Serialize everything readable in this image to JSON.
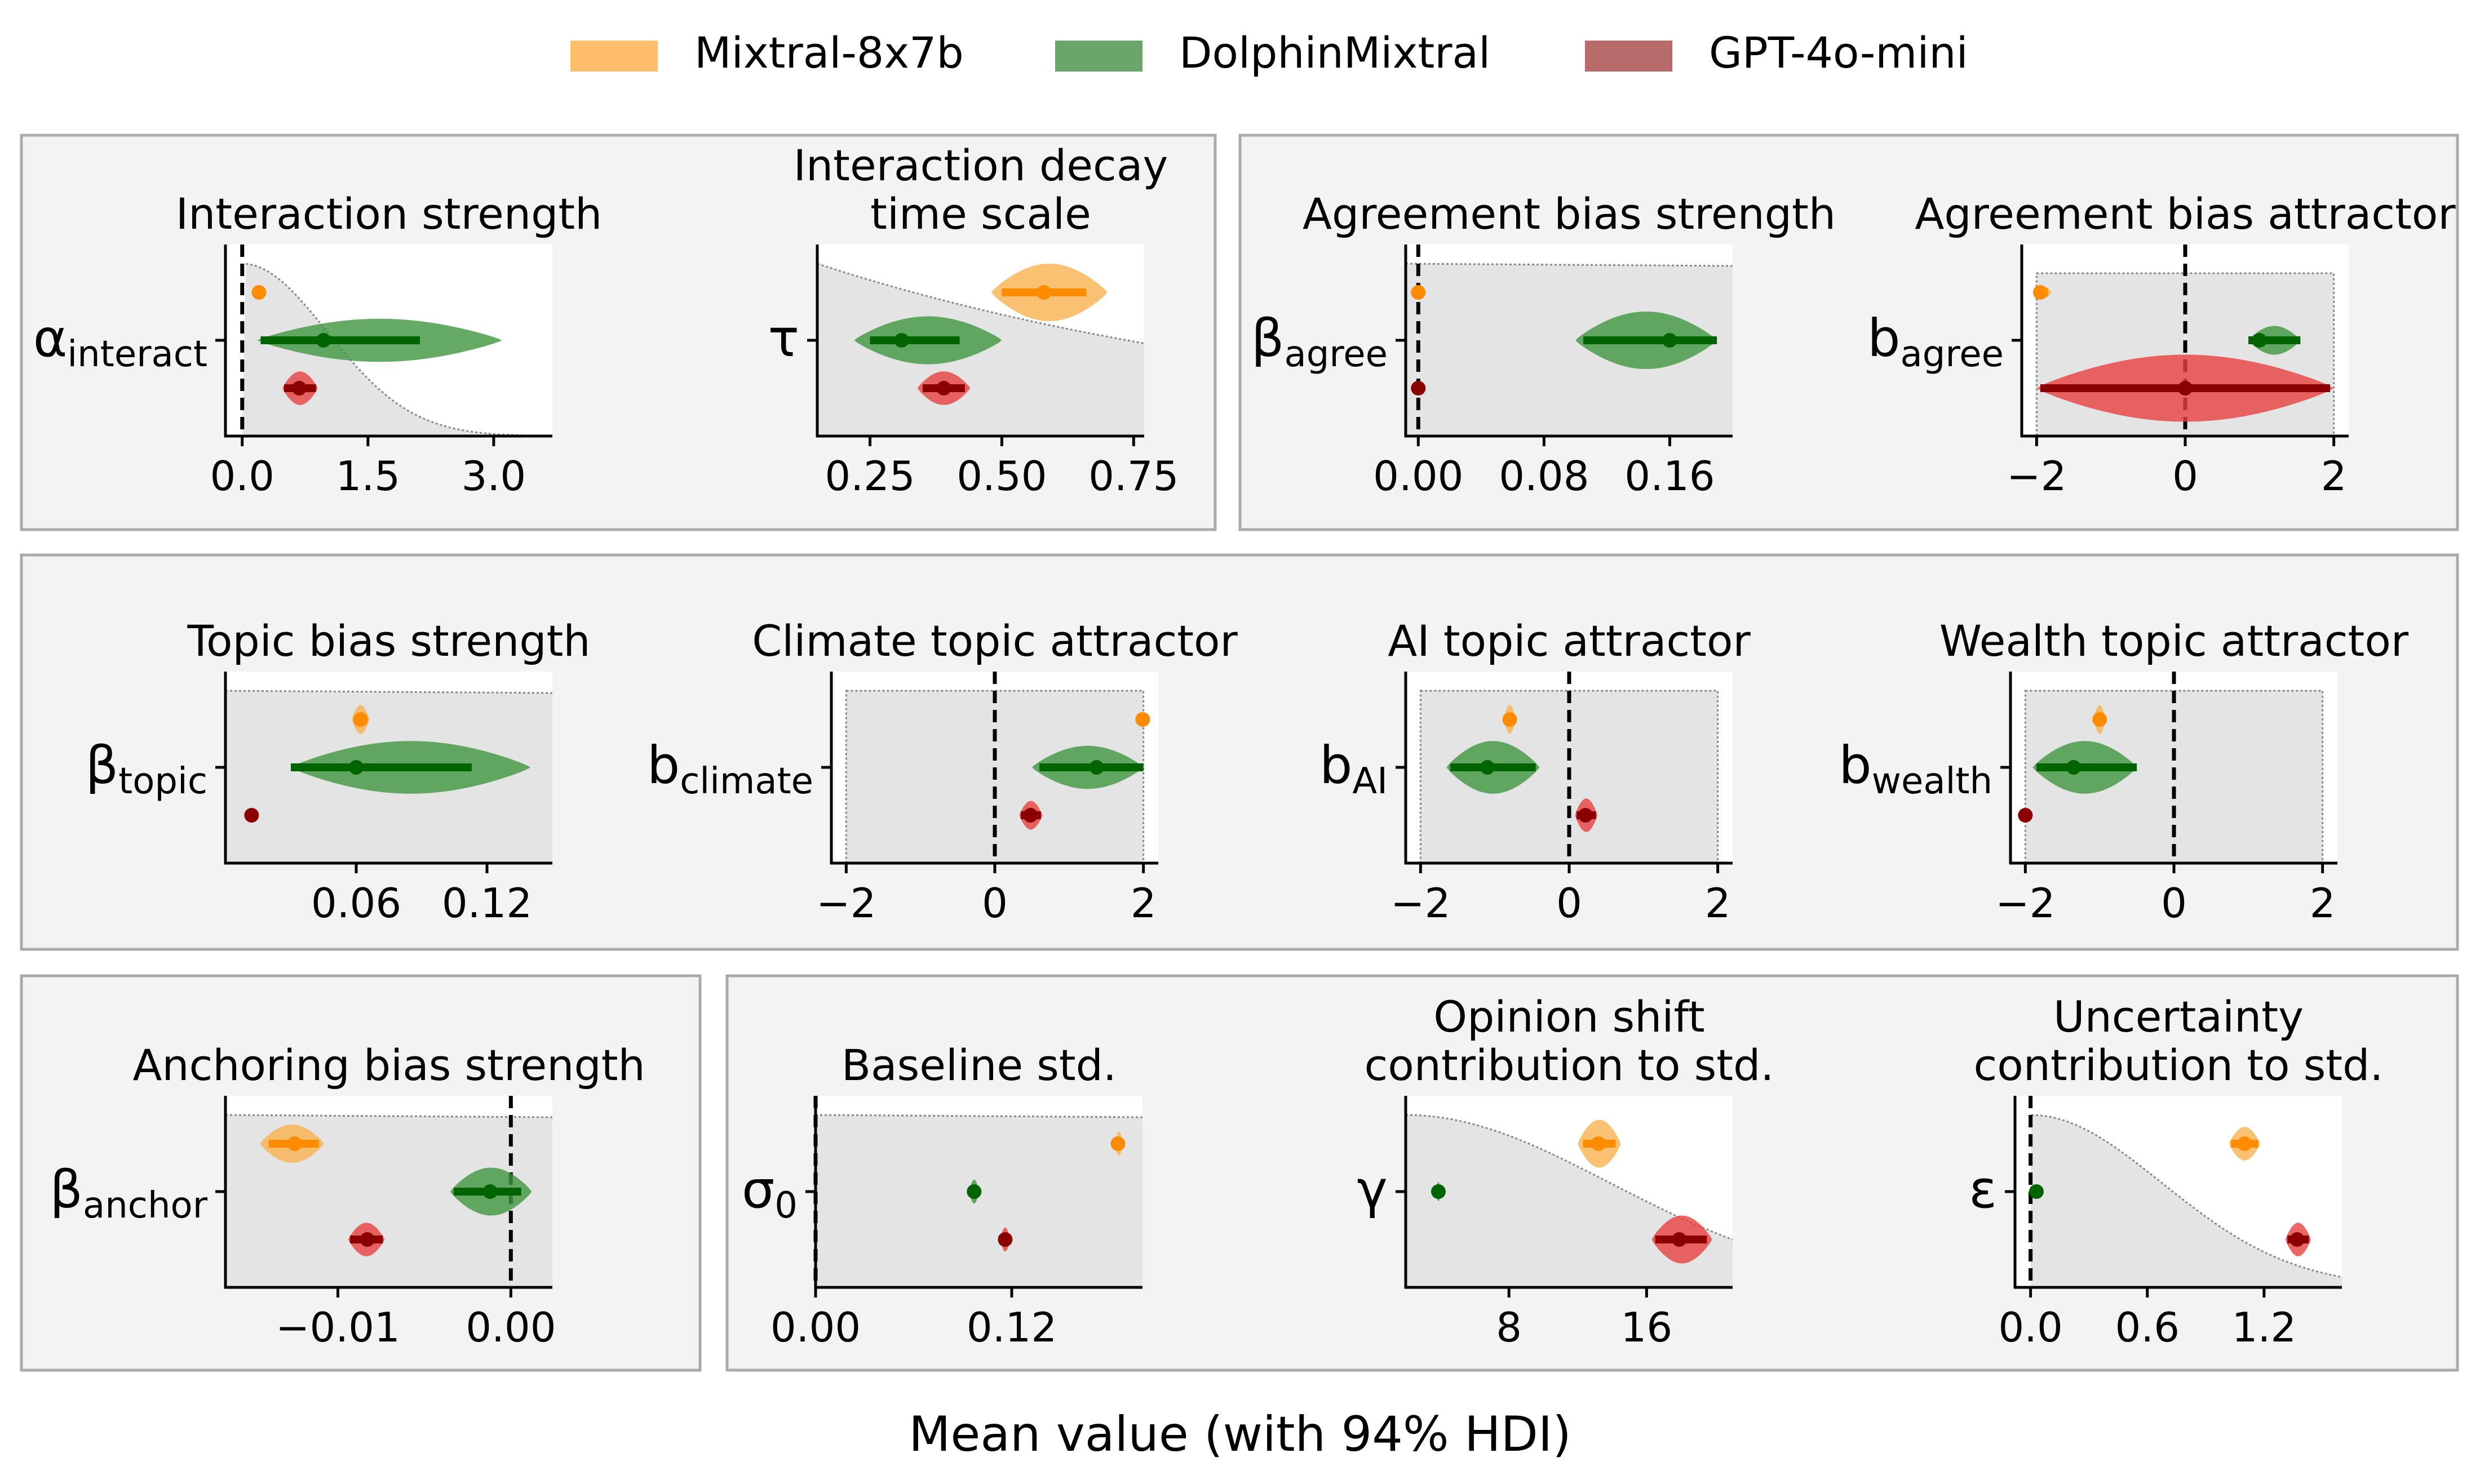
{
  "legend": [
    {
      "label": "Mixtral-8x7b",
      "color": "#ffbe6b"
    },
    {
      "label": "DolphinMixtral",
      "color": "#6aa66a"
    },
    {
      "label": "GPT-4o-mini",
      "color": "#b76b6b"
    }
  ],
  "colors": {
    "Mixtral-8x7b": {
      "fill": "#f9b24f",
      "line": "#ff8c00"
    },
    "DolphinMixtral": {
      "fill": "#3e963e",
      "line": "#006400"
    },
    "GPT-4o-mini": {
      "fill": "#e84040",
      "line": "#8b0000"
    },
    "prior": "#e4e4e4",
    "panel_bg": "#f3f3f3"
  },
  "xlabel": "Mean value (with 94% HDI)",
  "chart_data": [
    {
      "type": "violin",
      "title": [
        "Interaction strength"
      ],
      "ylabel": {
        "base": "α",
        "sub": "interact"
      },
      "xlim": [
        -0.2,
        3.7
      ],
      "ticks": [
        {
          "v": 0,
          "l": "0.0"
        },
        {
          "v": 1.5,
          "l": "1.5"
        },
        {
          "v": 3.0,
          "l": "3.0"
        }
      ],
      "zero_line": true,
      "prior": {
        "shape": "halfnormal",
        "scale": 1.5,
        "top": 0.9
      },
      "series": [
        {
          "name": "Mixtral-8x7b",
          "mean": 0.2,
          "hdi": [
            0.16,
            0.24
          ],
          "violin": [
            0.14,
            0.26
          ],
          "hw": 0.15
        },
        {
          "name": "DolphinMixtral",
          "mean": 0.97,
          "hdi": [
            0.22,
            2.12
          ],
          "violin": [
            0.18,
            3.1
          ],
          "hw": 0.45
        },
        {
          "name": "GPT-4o-mini",
          "mean": 0.68,
          "hdi": [
            0.5,
            0.88
          ],
          "violin": [
            0.48,
            0.9
          ],
          "hw": 0.35
        }
      ]
    },
    {
      "type": "violin",
      "title": [
        "Interaction decay",
        "time scale"
      ],
      "ylabel": {
        "base": "τ",
        "sub": ""
      },
      "xlim": [
        0.15,
        0.77
      ],
      "ticks": [
        {
          "v": 0.25,
          "l": "0.25"
        },
        {
          "v": 0.5,
          "l": "0.50"
        },
        {
          "v": 0.75,
          "l": "0.75"
        }
      ],
      "zero_line": false,
      "prior": {
        "shape": "exp",
        "rate": 1.0,
        "top": 0.9
      },
      "series": [
        {
          "name": "Mixtral-8x7b",
          "mean": 0.58,
          "hdi": [
            0.5,
            0.66
          ],
          "violin": [
            0.48,
            0.7
          ],
          "hw": 0.6
        },
        {
          "name": "DolphinMixtral",
          "mean": 0.31,
          "hdi": [
            0.25,
            0.42
          ],
          "violin": [
            0.22,
            0.5
          ],
          "hw": 0.5
        },
        {
          "name": "GPT-4o-mini",
          "mean": 0.39,
          "hdi": [
            0.35,
            0.43
          ],
          "violin": [
            0.34,
            0.44
          ],
          "hw": 0.35
        }
      ]
    },
    {
      "type": "violin",
      "title": [
        "Agreement bias strength"
      ],
      "ylabel": {
        "base": "β",
        "sub": "agree"
      },
      "xlim": [
        -0.008,
        0.2
      ],
      "ticks": [
        {
          "v": 0,
          "l": "0.00"
        },
        {
          "v": 0.08,
          "l": "0.08"
        },
        {
          "v": 0.16,
          "l": "0.16"
        }
      ],
      "zero_line": true,
      "prior": {
        "shape": "flat",
        "top": 0.9
      },
      "series": [
        {
          "name": "Mixtral-8x7b",
          "mean": 0.0,
          "hdi": [
            -0.001,
            0.001
          ],
          "violin": [
            -0.001,
            0.001
          ],
          "hw": 0.15
        },
        {
          "name": "DolphinMixtral",
          "mean": 0.16,
          "hdi": [
            0.105,
            0.19
          ],
          "violin": [
            0.1,
            0.19
          ],
          "hw": 0.6
        },
        {
          "name": "GPT-4o-mini",
          "mean": 0.0,
          "hdi": [
            -0.001,
            0.001
          ],
          "violin": [
            -0.001,
            0.001
          ],
          "hw": 0.15
        }
      ]
    },
    {
      "type": "violin",
      "title": [
        "Agreement bias attractor"
      ],
      "ylabel": {
        "base": "b",
        "sub": "agree"
      },
      "xlim": [
        -2.2,
        2.2
      ],
      "ticks": [
        {
          "v": -2,
          "l": "−2"
        },
        {
          "v": 0,
          "l": "0"
        },
        {
          "v": 2,
          "l": "2"
        }
      ],
      "zero_line": true,
      "prior": {
        "shape": "box",
        "lo": -2,
        "hi": 2,
        "top": 0.85
      },
      "series": [
        {
          "name": "Mixtral-8x7b",
          "mean": -1.95,
          "hdi": [
            -2.0,
            -1.85
          ],
          "violin": [
            -2.0,
            -1.8
          ],
          "hw": 0.12
        },
        {
          "name": "DolphinMixtral",
          "mean": 1.0,
          "hdi": [
            0.85,
            1.55
          ],
          "violin": [
            0.85,
            1.55
          ],
          "hw": 0.3
        },
        {
          "name": "GPT-4o-mini",
          "mean": 0.0,
          "hdi": [
            -1.95,
            1.95
          ],
          "violin": [
            -2.0,
            2.0
          ],
          "hw": 0.7
        }
      ]
    },
    {
      "type": "violin",
      "title": [
        "Topic bias strength"
      ],
      "ylabel": {
        "base": "β",
        "sub": "topic"
      },
      "xlim": [
        0,
        0.15
      ],
      "ticks": [
        {
          "v": 0.06,
          "l": "0.06"
        },
        {
          "v": 0.12,
          "l": "0.12"
        }
      ],
      "zero_line": false,
      "prior": {
        "shape": "flat",
        "top": 0.9
      },
      "series": [
        {
          "name": "Mixtral-8x7b",
          "mean": 0.062,
          "hdi": [
            0.059,
            0.065
          ],
          "violin": [
            0.058,
            0.066
          ],
          "hw": 0.3
        },
        {
          "name": "DolphinMixtral",
          "mean": 0.06,
          "hdi": [
            0.03,
            0.113
          ],
          "violin": [
            0.03,
            0.14
          ],
          "hw": 0.55
        },
        {
          "name": "GPT-4o-mini",
          "mean": 0.012,
          "hdi": [
            0.011,
            0.013
          ],
          "violin": [
            0.011,
            0.013
          ],
          "hw": 0.1
        }
      ]
    },
    {
      "type": "violin",
      "title": [
        "Climate topic attractor"
      ],
      "ylabel": {
        "base": "b",
        "sub": "climate"
      },
      "xlim": [
        -2.2,
        2.2
      ],
      "ticks": [
        {
          "v": -2,
          "l": "−2"
        },
        {
          "v": 0,
          "l": "0"
        },
        {
          "v": 2,
          "l": "2"
        }
      ],
      "zero_line": true,
      "prior": {
        "shape": "box",
        "lo": -2,
        "hi": 2,
        "top": 0.9
      },
      "series": [
        {
          "name": "Mixtral-8x7b",
          "mean": 1.99,
          "hdi": [
            1.98,
            2.0
          ],
          "violin": [
            1.98,
            2.0
          ],
          "hw": 0.1
        },
        {
          "name": "DolphinMixtral",
          "mean": 1.37,
          "hdi": [
            0.6,
            2.0
          ],
          "violin": [
            0.5,
            2.0
          ],
          "hw": 0.45
        },
        {
          "name": "GPT-4o-mini",
          "mean": 0.48,
          "hdi": [
            0.35,
            0.62
          ],
          "violin": [
            0.33,
            0.64
          ],
          "hw": 0.3
        }
      ]
    },
    {
      "type": "violin",
      "title": [
        "AI topic attractor"
      ],
      "ylabel": {
        "base": "b",
        "sub": "AI"
      },
      "xlim": [
        -2.2,
        2.2
      ],
      "ticks": [
        {
          "v": -2,
          "l": "−2"
        },
        {
          "v": 0,
          "l": "0"
        },
        {
          "v": 2,
          "l": "2"
        }
      ],
      "zero_line": true,
      "prior": {
        "shape": "box",
        "lo": -2,
        "hi": 2,
        "top": 0.9
      },
      "series": [
        {
          "name": "Mixtral-8x7b",
          "mean": -0.8,
          "hdi": [
            -0.85,
            -0.75
          ],
          "violin": [
            -0.88,
            -0.72
          ],
          "hw": 0.3
        },
        {
          "name": "DolphinMixtral",
          "mean": -1.1,
          "hdi": [
            -1.6,
            -0.45
          ],
          "violin": [
            -1.65,
            -0.4
          ],
          "hw": 0.55
        },
        {
          "name": "GPT-4o-mini",
          "mean": 0.22,
          "hdi": [
            0.1,
            0.36
          ],
          "violin": [
            0.08,
            0.38
          ],
          "hw": 0.35
        }
      ]
    },
    {
      "type": "violin",
      "title": [
        "Wealth topic attractor"
      ],
      "ylabel": {
        "base": "b",
        "sub": "wealth"
      },
      "xlim": [
        -2.2,
        2.2
      ],
      "ticks": [
        {
          "v": -2,
          "l": "−2"
        },
        {
          "v": 0,
          "l": "0"
        },
        {
          "v": 2,
          "l": "2"
        }
      ],
      "zero_line": true,
      "prior": {
        "shape": "box",
        "lo": -2,
        "hi": 2,
        "top": 0.9
      },
      "series": [
        {
          "name": "Mixtral-8x7b",
          "mean": -1.0,
          "hdi": [
            -1.05,
            -0.95
          ],
          "violin": [
            -1.08,
            -0.92
          ],
          "hw": 0.3
        },
        {
          "name": "DolphinMixtral",
          "mean": -1.35,
          "hdi": [
            -1.85,
            -0.5
          ],
          "violin": [
            -1.9,
            -0.5
          ],
          "hw": 0.55
        },
        {
          "name": "GPT-4o-mini",
          "mean": -2.0,
          "hdi": [
            -2.01,
            -1.99
          ],
          "violin": [
            -2.01,
            -1.99
          ],
          "hw": 0.1
        }
      ]
    },
    {
      "type": "violin",
      "title": [
        "Anchoring bias strength"
      ],
      "ylabel": {
        "base": "β",
        "sub": "anchor"
      },
      "xlim": [
        -0.0165,
        0.0024
      ],
      "ticks": [
        {
          "v": -0.01,
          "l": "−0.01"
        },
        {
          "v": 0.0,
          "l": "0.00"
        }
      ],
      "zero_line": true,
      "prior": {
        "shape": "flat",
        "top": 0.9
      },
      "series": [
        {
          "name": "Mixtral-8x7b",
          "mean": -0.0125,
          "hdi": [
            -0.014,
            -0.0111
          ],
          "violin": [
            -0.0145,
            -0.0108
          ],
          "hw": 0.4
        },
        {
          "name": "DolphinMixtral",
          "mean": -0.0012,
          "hdi": [
            -0.0033,
            0.0006
          ],
          "violin": [
            -0.0035,
            0.0012
          ],
          "hw": 0.5
        },
        {
          "name": "GPT-4o-mini",
          "mean": -0.0083,
          "hdi": [
            -0.0093,
            -0.0074
          ],
          "violin": [
            -0.0094,
            -0.0073
          ],
          "hw": 0.35
        }
      ]
    },
    {
      "type": "violin",
      "title": [
        "Baseline std."
      ],
      "ylabel": {
        "base": "σ",
        "sub": "0"
      },
      "xlim": [
        0,
        0.2
      ],
      "ticks": [
        {
          "v": 0,
          "l": "0.00"
        },
        {
          "v": 0.12,
          "l": "0.12"
        }
      ],
      "zero_line": true,
      "prior": {
        "shape": "flat",
        "top": 0.9
      },
      "series": [
        {
          "name": "Mixtral-8x7b",
          "mean": 0.185,
          "hdi": [
            0.184,
            0.187
          ],
          "violin": [
            0.183,
            0.188
          ],
          "hw": 0.25
        },
        {
          "name": "DolphinMixtral",
          "mean": 0.097,
          "hdi": [
            0.095,
            0.099
          ],
          "violin": [
            0.094,
            0.1
          ],
          "hw": 0.25
        },
        {
          "name": "GPT-4o-mini",
          "mean": 0.116,
          "hdi": [
            0.114,
            0.118
          ],
          "violin": [
            0.113,
            0.119
          ],
          "hw": 0.25
        }
      ]
    },
    {
      "type": "violin",
      "title": [
        "Opinion shift",
        "contribution to std."
      ],
      "ylabel": {
        "base": "γ",
        "sub": ""
      },
      "xlim": [
        2,
        21
      ],
      "ticks": [
        {
          "v": 8,
          "l": "8"
        },
        {
          "v": 16,
          "l": "16"
        }
      ],
      "zero_line": false,
      "prior": {
        "shape": "halfnormal_shift",
        "x0": 2,
        "scale": 15,
        "top": 0.9
      },
      "series": [
        {
          "name": "Mixtral-8x7b",
          "mean": 13.2,
          "hdi": [
            12.3,
            14.2
          ],
          "violin": [
            12.0,
            14.5
          ],
          "hw": 0.5
        },
        {
          "name": "DolphinMixtral",
          "mean": 3.9,
          "hdi": [
            3.8,
            4.0
          ],
          "violin": [
            3.75,
            4.05
          ],
          "hw": 0.2
        },
        {
          "name": "GPT-4o-mini",
          "mean": 17.9,
          "hdi": [
            16.5,
            19.5
          ],
          "violin": [
            16.3,
            19.8
          ],
          "hw": 0.5
        }
      ]
    },
    {
      "type": "violin",
      "title": [
        "Uncertainty",
        "contribution to std."
      ],
      "ylabel": {
        "base": "ε",
        "sub": ""
      },
      "xlim": [
        -0.08,
        1.6
      ],
      "ticks": [
        {
          "v": 0,
          "l": "0.0"
        },
        {
          "v": 0.6,
          "l": "0.6"
        },
        {
          "v": 1.2,
          "l": "1.2"
        }
      ],
      "zero_line": true,
      "prior": {
        "shape": "halfnormal",
        "scale": 1.0,
        "top": 0.9
      },
      "series": [
        {
          "name": "Mixtral-8x7b",
          "mean": 1.1,
          "hdi": [
            1.03,
            1.17
          ],
          "violin": [
            1.02,
            1.18
          ],
          "hw": 0.35
        },
        {
          "name": "DolphinMixtral",
          "mean": 0.03,
          "hdi": [
            0.02,
            0.04
          ],
          "violin": [
            0.02,
            0.04
          ],
          "hw": 0.15
        },
        {
          "name": "GPT-4o-mini",
          "mean": 1.37,
          "hdi": [
            1.32,
            1.43
          ],
          "violin": [
            1.31,
            1.44
          ],
          "hw": 0.35
        }
      ]
    }
  ]
}
